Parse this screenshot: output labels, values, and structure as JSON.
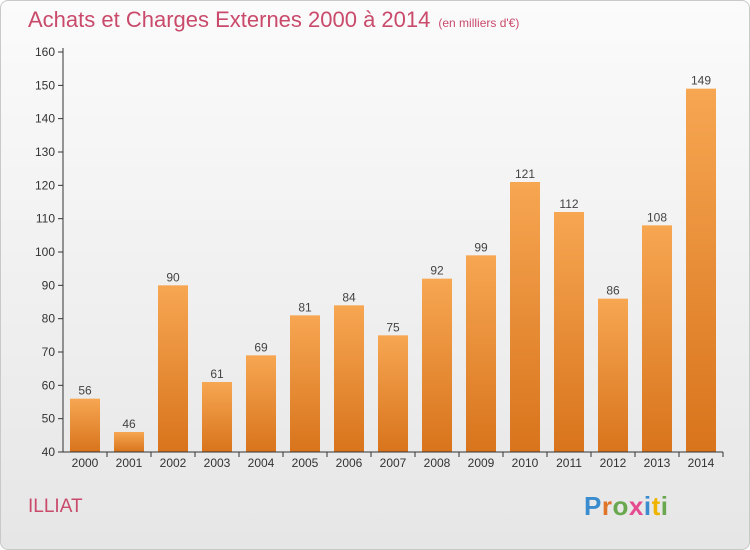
{
  "title": "Achats et Charges Externes 2000 à 2014",
  "unit": "(en milliers d'€)",
  "commune": "ILLIAT",
  "logo": {
    "text": "Proxiti",
    "letter_colors": [
      "#3a8ccf",
      "#e0742a",
      "#6aa84f",
      "#e54b8f",
      "#3a8ccf",
      "#f0b400",
      "#6aa84f"
    ]
  },
  "colors": {
    "title": "#c94a6b",
    "bar_top": "#f7a652",
    "bar_bottom": "#d8741c",
    "axis": "#333333",
    "grid": "#d0d0d0"
  },
  "chart_data": {
    "type": "bar",
    "categories": [
      "2000",
      "2001",
      "2002",
      "2003",
      "2004",
      "2005",
      "2006",
      "2007",
      "2008",
      "2009",
      "2010",
      "2011",
      "2012",
      "2013",
      "2014"
    ],
    "values": [
      56,
      46,
      90,
      61,
      69,
      81,
      84,
      75,
      92,
      99,
      121,
      112,
      86,
      108,
      149
    ],
    "title": "Achats et Charges Externes 2000 à 2014",
    "xlabel": "",
    "ylabel": "",
    "ylim": [
      40,
      160
    ],
    "yticks": [
      40,
      50,
      60,
      70,
      80,
      90,
      100,
      110,
      120,
      130,
      140,
      150,
      160
    ],
    "data_labels": true,
    "grid": false,
    "legend": "none"
  }
}
